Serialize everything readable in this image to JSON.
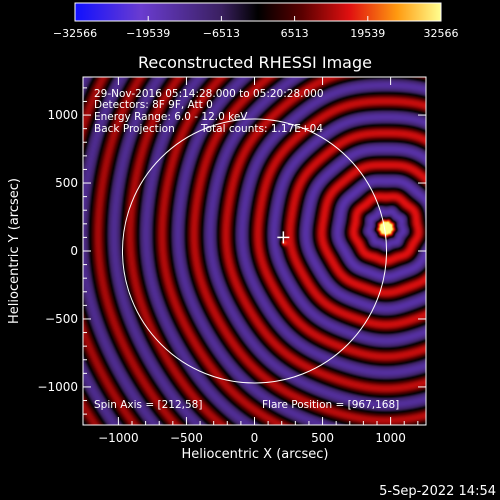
{
  "chart_data": {
    "type": "heatmap",
    "title": "Reconstructed RHESSI Image",
    "xlabel": "Heliocentric X (arcsec)",
    "ylabel": "Heliocentric Y (arcsec)",
    "xlim": [
      -1260,
      1260
    ],
    "ylim": [
      -1280,
      1280
    ],
    "x_ticks": [
      -1000,
      -500,
      0,
      500,
      1000
    ],
    "y_ticks": [
      -1000,
      -500,
      0,
      500,
      1000
    ],
    "x_tick_labels": [
      "−1000",
      "−500",
      "0",
      "500",
      "1000"
    ],
    "y_tick_labels": [
      "−1000",
      "−500",
      "0",
      "500",
      "1000"
    ],
    "colorbar": {
      "min": -32566,
      "max": 32566,
      "ticks": [
        -32566,
        -19539,
        -6513,
        6513,
        19539,
        32566
      ],
      "tick_labels": [
        "−32566",
        "−19539",
        "−6513",
        "6513",
        "19539",
        "32566"
      ]
    },
    "annotations": {
      "time_range": "29-Nov-2016 05:14:28.000 to 05:20:28.000",
      "detectors": "Detectors: 8F 9F, Att 0",
      "energy_range": "Energy Range: 6.0 - 12.0 keV",
      "method": "Back Projection",
      "total_counts": "Total counts: 1.17E+04",
      "spin_axis": "Spin Axis = [212,58]",
      "flare_position": "Flare Position = [967,168]"
    },
    "solar_limb_radius": 970,
    "source": {
      "x": 967,
      "y": 168,
      "intensity": 32566
    },
    "secondary_source": {
      "x": 212,
      "y": 58
    },
    "spin_axis_marker": {
      "x": 212,
      "y": 100
    },
    "ring_spacing": 235
  },
  "footer": {
    "date": "5-Sep-2022 14:54"
  }
}
